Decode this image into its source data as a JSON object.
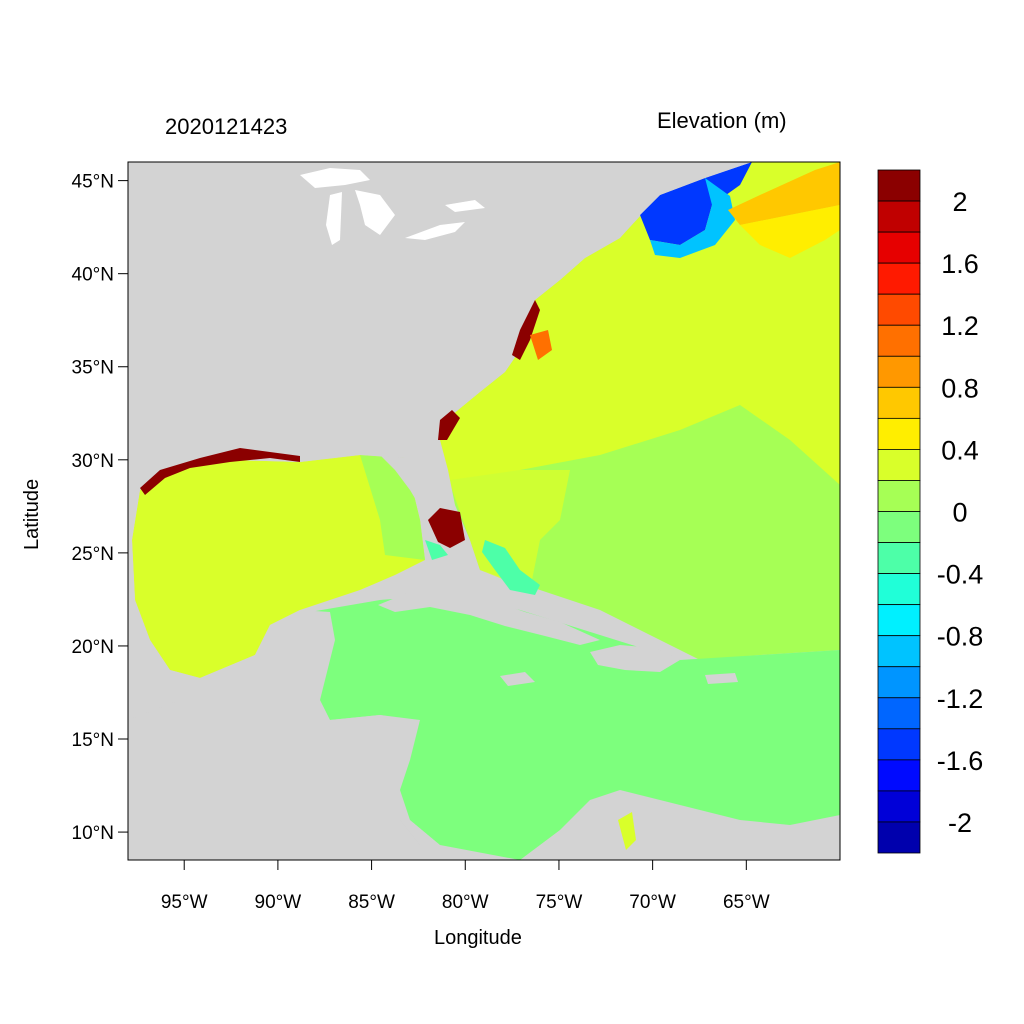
{
  "title_left": "2020121423",
  "title_right": "Elevation (m)",
  "xlabel": "Longitude",
  "ylabel": "Latitude",
  "map": {
    "lon_range": [
      -98,
      -60
    ],
    "lat_range": [
      8.5,
      46
    ],
    "land_color": "#d3d3d3",
    "lakes_color": "#ffffff"
  },
  "x_ticks": [
    {
      "value": -95,
      "label": "95°W"
    },
    {
      "value": -90,
      "label": "90°W"
    },
    {
      "value": -85,
      "label": "85°W"
    },
    {
      "value": -80,
      "label": "80°W"
    },
    {
      "value": -75,
      "label": "75°W"
    },
    {
      "value": -70,
      "label": "70°W"
    },
    {
      "value": -65,
      "label": "65°W"
    }
  ],
  "y_ticks": [
    {
      "value": 45,
      "label": "45°N"
    },
    {
      "value": 40,
      "label": "40°N"
    },
    {
      "value": 35,
      "label": "35°N"
    },
    {
      "value": 30,
      "label": "30°N"
    },
    {
      "value": 25,
      "label": "25°N"
    },
    {
      "value": 20,
      "label": "20°N"
    },
    {
      "value": 15,
      "label": "15°N"
    },
    {
      "value": 10,
      "label": "10°N"
    }
  ],
  "colorbar": {
    "colors_top_to_bottom": [
      "#8b0000",
      "#c00000",
      "#e60000",
      "#ff1a00",
      "#ff4a00",
      "#ff7000",
      "#ff9800",
      "#ffc800",
      "#ffee00",
      "#d9ff2a",
      "#a6ff55",
      "#7dff7d",
      "#4dffa8",
      "#20ffd8",
      "#00f0ff",
      "#00c3ff",
      "#0095ff",
      "#0066ff",
      "#0038ff",
      "#000aff",
      "#0000d8",
      "#0000ad"
    ],
    "labels": [
      "2",
      "1.6",
      "1.2",
      "0.8",
      "0.4",
      "0",
      "-0.4",
      "-0.8",
      "-1.2",
      "-1.6",
      "-2"
    ]
  }
}
